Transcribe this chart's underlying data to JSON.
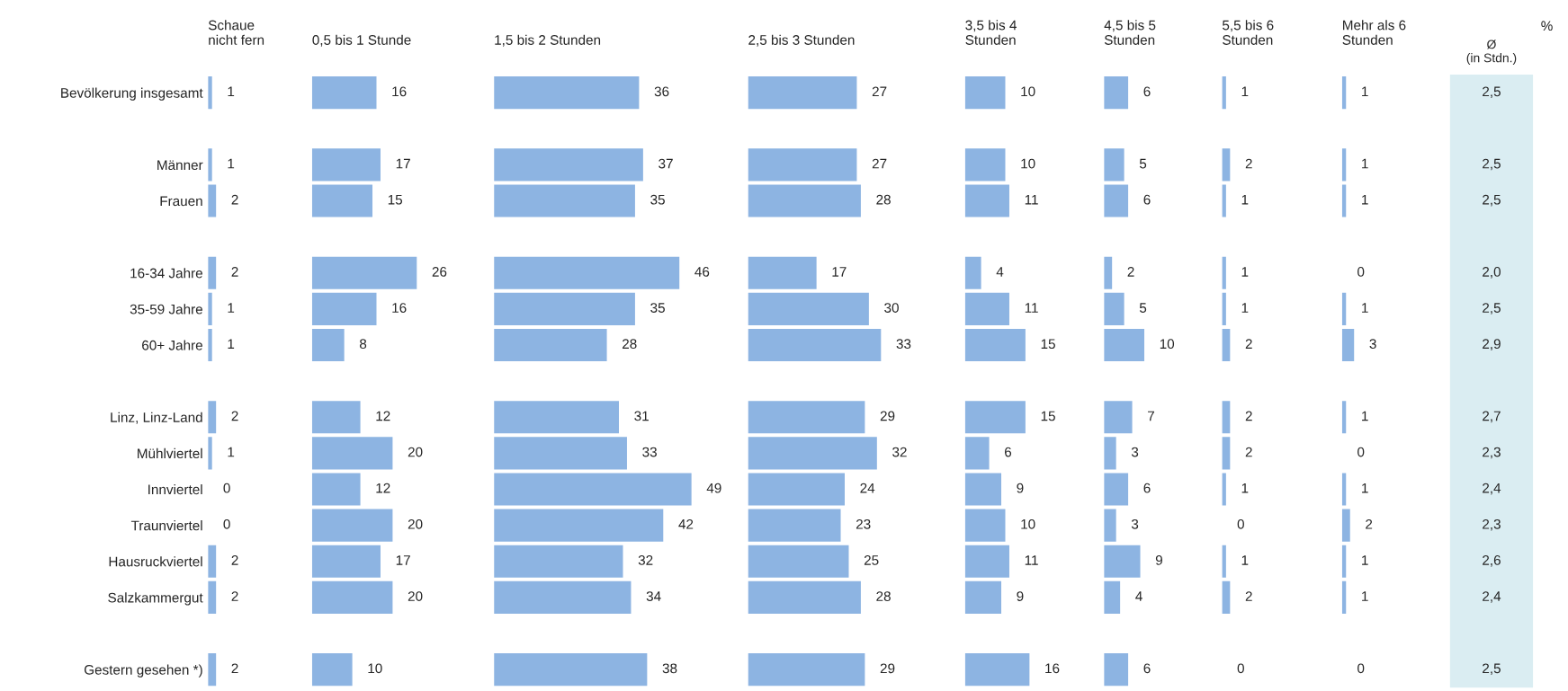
{
  "chart_data": [
    {
      "type": "bar",
      "orientation": "horizontal",
      "title": "Schaue\nnicht fern",
      "color": "#8db4e2",
      "data_labels": true,
      "tick_labels": "y",
      "categories": [
        "Bevölkerung insgesamt",
        null,
        "Männer",
        "Frauen",
        null,
        "16-34 Jahre",
        "35-59 Jahre",
        "60+ Jahre",
        null,
        "Linz, Linz-Land",
        "Mühlviertel",
        "Innviertel",
        "Traunviertel",
        "Hausruckviertel",
        "Salzkammergut",
        null,
        "Gestern gesehen *)"
      ],
      "values": [
        1,
        null,
        1,
        2,
        null,
        2,
        1,
        1,
        null,
        2,
        1,
        0,
        0,
        2,
        2,
        null,
        2
      ]
    },
    {
      "type": "bar",
      "orientation": "horizontal",
      "title": "0,5 bis 1 Stunde",
      "color": "#8db4e2",
      "data_labels": true,
      "tick_labels": false,
      "values": [
        16,
        null,
        17,
        15,
        null,
        26,
        16,
        8,
        null,
        12,
        20,
        12,
        20,
        17,
        20,
        null,
        10
      ]
    },
    {
      "type": "bar",
      "orientation": "horizontal",
      "title": "1,5 bis 2 Stunden",
      "color": "#8db4e2",
      "data_labels": true,
      "values": [
        36,
        null,
        37,
        35,
        null,
        46,
        35,
        28,
        null,
        31,
        33,
        49,
        42,
        32,
        34,
        null,
        38
      ]
    },
    {
      "type": "bar",
      "orientation": "horizontal",
      "title": "2,5 bis 3 Stunden",
      "color": "#8db4e2",
      "data_labels": true,
      "values": [
        27,
        null,
        27,
        28,
        null,
        17,
        30,
        33,
        null,
        29,
        32,
        24,
        23,
        25,
        28,
        null,
        29
      ]
    },
    {
      "type": "bar",
      "orientation": "horizontal",
      "title": "3,5 bis 4\nStunden",
      "color": "#8db4e2",
      "data_labels": true,
      "values": [
        10,
        null,
        10,
        11,
        null,
        4,
        11,
        15,
        null,
        15,
        6,
        9,
        10,
        11,
        9,
        null,
        16
      ]
    },
    {
      "type": "bar",
      "orientation": "horizontal",
      "title": "4,5 bis 5\nStunden",
      "color": "#8db4e2",
      "data_labels": true,
      "values": [
        6,
        null,
        5,
        6,
        null,
        2,
        5,
        10,
        null,
        7,
        3,
        6,
        3,
        9,
        4,
        null,
        6
      ]
    },
    {
      "type": "bar",
      "orientation": "horizontal",
      "title": "5,5 bis 6\nStunden",
      "color": "#8db4e2",
      "data_labels": true,
      "values": [
        1,
        null,
        2,
        1,
        null,
        1,
        1,
        2,
        null,
        2,
        2,
        1,
        0,
        1,
        2,
        null,
        0
      ]
    },
    {
      "type": "bar",
      "orientation": "horizontal",
      "title": "Mehr als 6\nStunden",
      "color": "#8db4e2",
      "data_labels": true,
      "values": [
        1,
        null,
        1,
        1,
        null,
        0,
        1,
        3,
        null,
        1,
        0,
        1,
        2,
        1,
        1,
        null,
        0
      ]
    },
    {
      "type": "other",
      "title": "Ø\n(in Stdn.)",
      "color": "#daedf2",
      "annotations": [
        "%"
      ],
      "value_labels": [
        "2,5",
        null,
        "2,5",
        "2,5",
        null,
        "2,0",
        "2,5",
        "2,9",
        null,
        "2,7",
        "2,3",
        "2,4",
        "2,3",
        "2,6",
        "2,4",
        null,
        "2,5"
      ]
    }
  ]
}
